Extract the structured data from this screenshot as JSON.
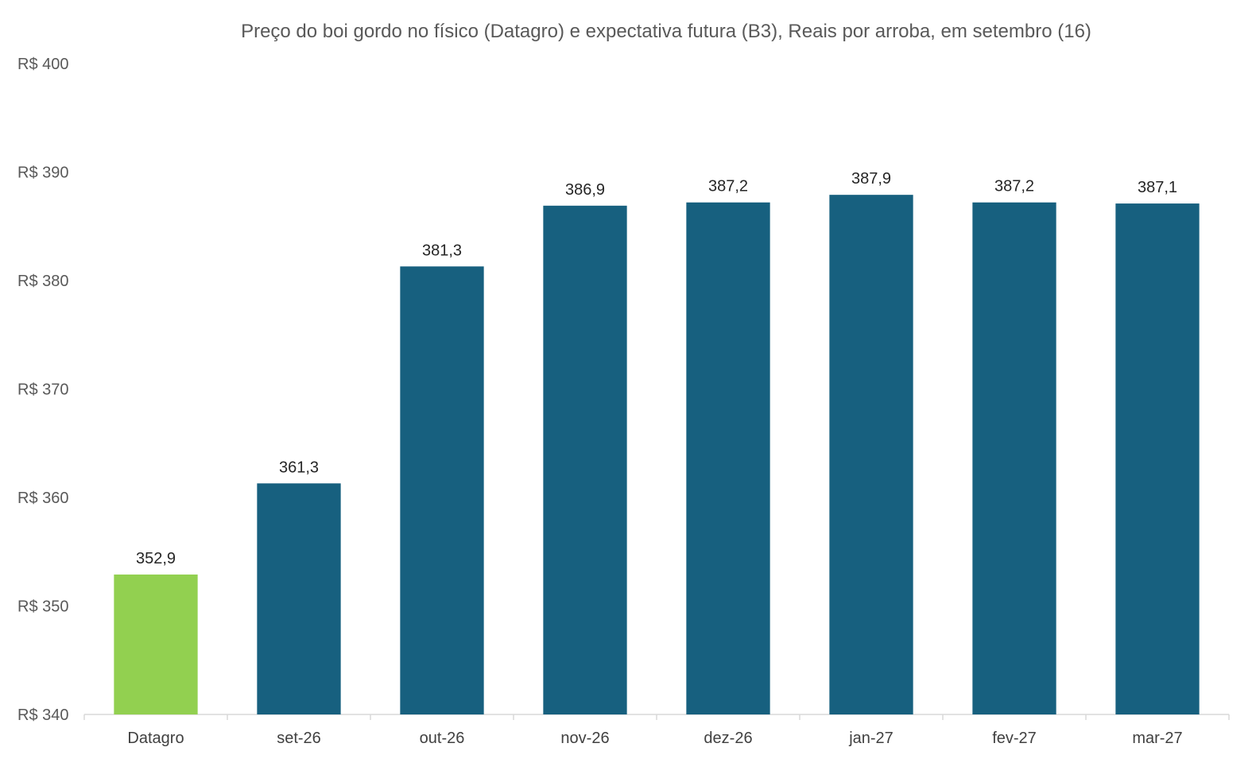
{
  "chart_data": {
    "type": "bar",
    "title": "Preço do boi gordo no físico (Datagro)  e expectativa futura (B3), Reais por arroba, em setembro (16)",
    "xlabel": "",
    "ylabel": "",
    "categories": [
      "Datagro",
      "set-26",
      "out-26",
      "nov-26",
      "dez-26",
      "jan-27",
      "fev-27",
      "mar-27"
    ],
    "values": [
      352.9,
      361.3,
      381.3,
      386.9,
      387.2,
      387.9,
      387.2,
      387.1
    ],
    "data_labels": [
      "352,9",
      "361,3",
      "381,3",
      "386,9",
      "387,2",
      "387,9",
      "387,2",
      "387,1"
    ],
    "bar_colors": [
      "#92D050",
      "#17607F",
      "#17607F",
      "#17607F",
      "#17607F",
      "#17607F",
      "#17607F",
      "#17607F"
    ],
    "ylim": [
      340,
      400
    ],
    "y_ticks": [
      340,
      350,
      360,
      370,
      380,
      390,
      400
    ],
    "y_tick_labels": [
      "R$ 340",
      "R$ 350",
      "R$ 360",
      "R$ 370",
      "R$ 380",
      "R$ 390",
      "R$ 400"
    ],
    "grid": false,
    "legend": "none"
  }
}
